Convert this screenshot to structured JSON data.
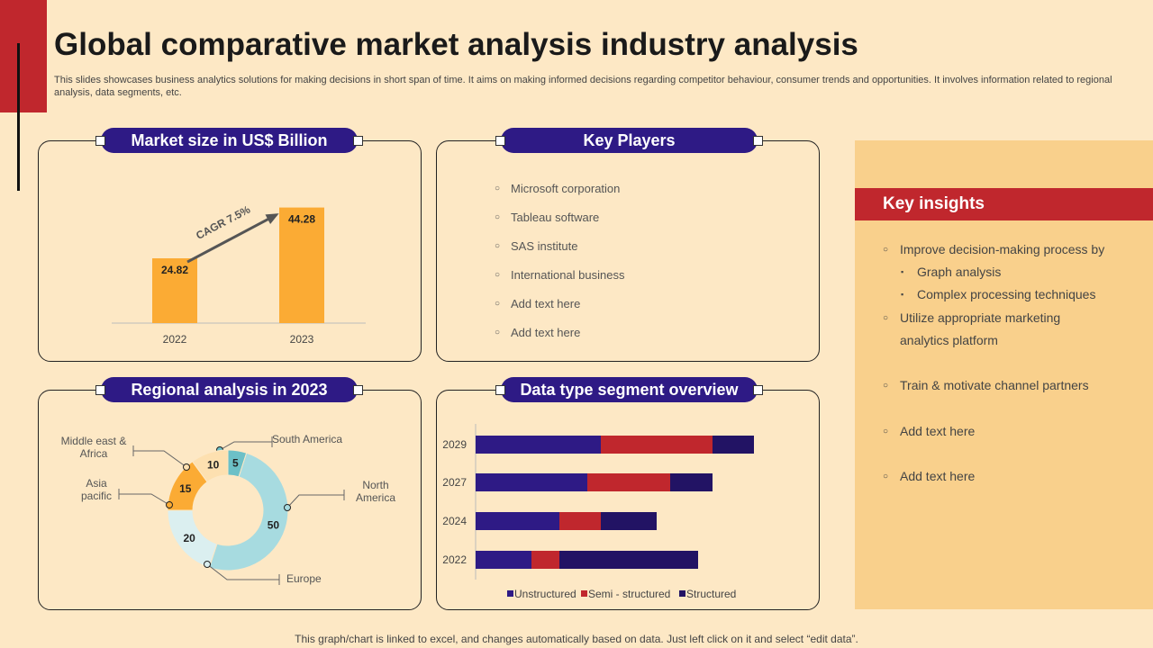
{
  "title": "Global comparative market analysis industry analysis",
  "subtitle": "This slides showcases business analytics solutions for making decisions in short span of time. It aims on making informed decisions regarding competitor behaviour, consumer trends and opportunities. It involves information related to regional analysis, data segments, etc.",
  "panels": {
    "market_size": "Market size in US$ Billion",
    "key_players": "Key Players",
    "regional": "Regional analysis in 2023",
    "data_type": "Data type segment overview"
  },
  "key_players": [
    "Microsoft corporation",
    "Tableau  software",
    "SAS institute",
    "International  business",
    "Add text here",
    "Add text here"
  ],
  "insights": {
    "title": "Key insights",
    "item1": "Improve decision-making process by",
    "sub1": "Graph analysis",
    "sub2": "Complex processing techniques",
    "item2_line1": "Utilize  appropriate marketing",
    "item2_line2": "analytics platform",
    "item3": "Train & motivate channel partners",
    "item4": "Add text here",
    "item5": "Add text here"
  },
  "footer": "This graph/chart is linked to excel,  and changes automatically based on data. Just left click on it and select “edit data”.",
  "colors": {
    "red": "#c0272d",
    "navy": "#2e1a85",
    "orange": "#fbab34",
    "bg": "#fde8c5",
    "panel_yellow": "#f9d08c",
    "unstructured": "#2e1a85",
    "semi": "#c0272d",
    "structured": "#221364"
  },
  "chart_data": [
    {
      "type": "bar",
      "title": "Market size in US$ Billion",
      "categories": [
        "2022",
        "2023"
      ],
      "values": [
        24.82,
        44.28
      ],
      "ylim": [
        0,
        50
      ],
      "annotation": "CAGR 7.5%"
    },
    {
      "type": "pie",
      "title": "Regional analysis in 2023",
      "labels": [
        "South America",
        "North America",
        "Europe",
        "Asia pacific",
        "Middle east & Africa"
      ],
      "values": [
        5,
        50,
        20,
        15,
        10
      ],
      "colors": [
        "#6cc0c7",
        "#a7dbe0",
        "#dbeff0",
        "#fbab34",
        "#fde0b0"
      ]
    },
    {
      "type": "bar",
      "orientation": "horizontal",
      "stacked": true,
      "title": "Data type segment overview",
      "categories": [
        "2029",
        "2027",
        "2024",
        "2022"
      ],
      "series": [
        {
          "name": "Unstructured",
          "values": [
            45,
            40,
            30,
            20
          ]
        },
        {
          "name": "Semi - structured",
          "values": [
            40,
            30,
            15,
            10
          ]
        },
        {
          "name": "Structured",
          "values": [
            15,
            15,
            20,
            50
          ]
        }
      ],
      "xlim": [
        0,
        100
      ]
    }
  ]
}
